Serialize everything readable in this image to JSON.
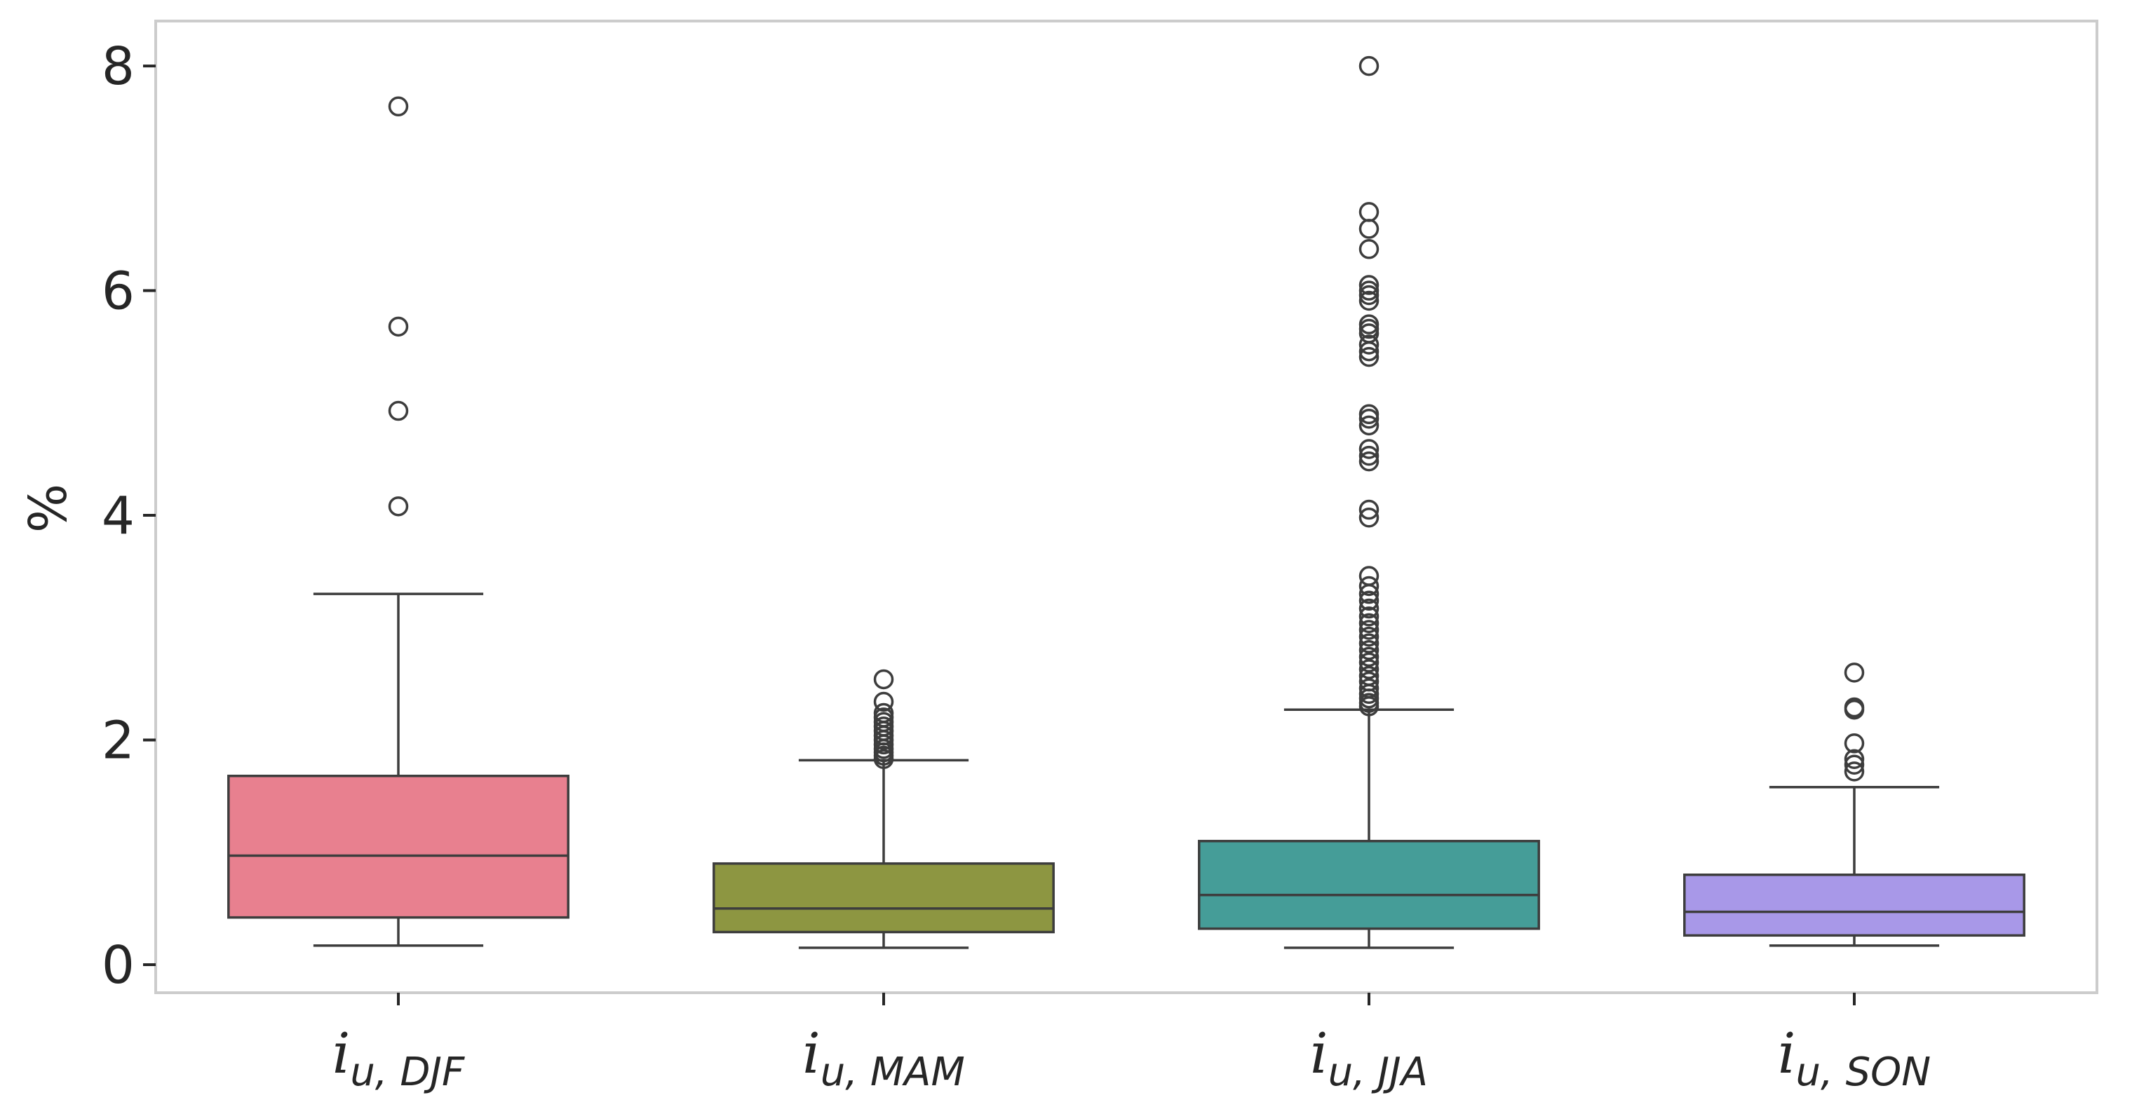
{
  "chart_data": {
    "type": "box",
    "ylabel": "%",
    "ylim": [
      -0.25,
      8.4
    ],
    "yticks": [
      "0",
      "2",
      "4",
      "6",
      "8"
    ],
    "categories": [
      {
        "base": "i",
        "sub": "u, DJF"
      },
      {
        "base": "i",
        "sub": "u, MAM"
      },
      {
        "base": "i",
        "sub": "u, JJA"
      },
      {
        "base": "i",
        "sub": "u, SON"
      }
    ],
    "boxes": [
      {
        "color": "#e8808f",
        "whisker_low": 0.17,
        "q1": 0.42,
        "median": 0.97,
        "q3": 1.68,
        "whisker_high": 3.3,
        "outliers": [
          4.08,
          4.93,
          5.68,
          7.64
        ]
      },
      {
        "color": "#8d9641",
        "whisker_low": 0.15,
        "q1": 0.29,
        "median": 0.5,
        "q3": 0.9,
        "whisker_high": 1.82,
        "outliers": [
          1.83,
          1.86,
          1.89,
          1.92,
          1.96,
          2.0,
          2.04,
          2.08,
          2.12,
          2.16,
          2.2,
          2.24,
          2.34,
          2.54
        ]
      },
      {
        "color": "#459d98",
        "whisker_low": 0.15,
        "q1": 0.32,
        "median": 0.62,
        "q3": 1.1,
        "whisker_high": 2.27,
        "outliers": [
          2.3,
          2.33,
          2.37,
          2.41,
          2.46,
          2.52,
          2.57,
          2.63,
          2.69,
          2.74,
          2.8,
          2.86,
          2.92,
          2.98,
          3.04,
          3.1,
          3.17,
          3.24,
          3.3,
          3.37,
          3.46,
          3.98,
          4.05,
          4.48,
          4.53,
          4.59,
          4.8,
          4.86,
          4.9,
          5.41,
          5.46,
          5.52,
          5.62,
          5.66,
          5.7,
          5.91,
          5.96,
          6.0,
          6.05,
          6.37,
          6.55,
          6.7,
          8.0
        ]
      },
      {
        "color": "#a898e8",
        "whisker_low": 0.17,
        "q1": 0.26,
        "median": 0.47,
        "q3": 0.8,
        "whisker_high": 1.58,
        "outliers": [
          1.72,
          1.78,
          1.83,
          1.97,
          2.27,
          2.29,
          2.6
        ]
      }
    ]
  }
}
